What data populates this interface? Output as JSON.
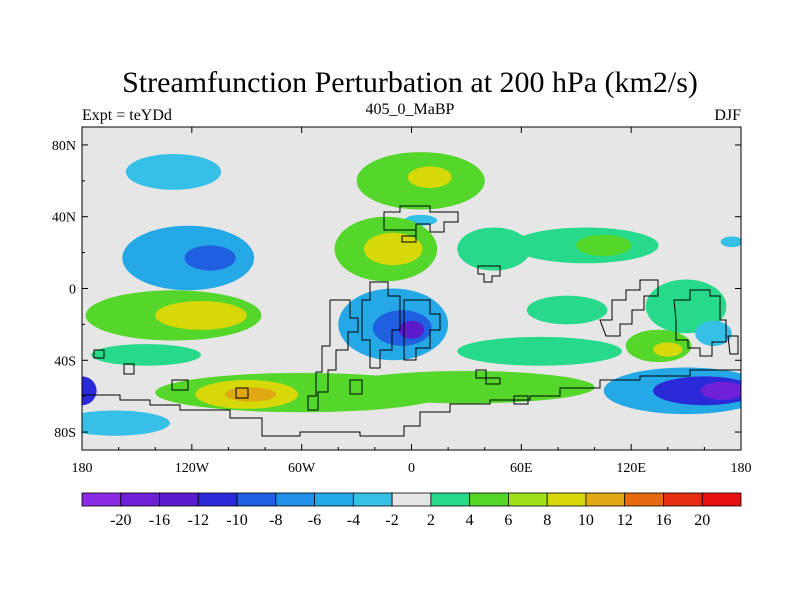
{
  "chart_data": {
    "type": "heatmap",
    "title": "Streamfunction Perturbation at 200 hPa (km2/s)",
    "subtitle_left": "Expt = teYDd",
    "subtitle_center": "405_0_MaBP",
    "subtitle_right": "DJF",
    "x_ticks": [
      {
        "value": -180,
        "label": "180"
      },
      {
        "value": -120,
        "label": "120W"
      },
      {
        "value": -60,
        "label": "60W"
      },
      {
        "value": 0,
        "label": "0"
      },
      {
        "value": 60,
        "label": "60E"
      },
      {
        "value": 120,
        "label": "120E"
      },
      {
        "value": 180,
        "label": "180"
      }
    ],
    "y_ticks": [
      {
        "value": 80,
        "label": "80N"
      },
      {
        "value": 40,
        "label": "40N"
      },
      {
        "value": 0,
        "label": "0"
      },
      {
        "value": -40,
        "label": "40S"
      },
      {
        "value": -80,
        "label": "80S"
      }
    ],
    "xlim": [
      -180,
      180
    ],
    "ylim": [
      -90,
      90
    ],
    "levels": [
      -20,
      -16,
      -12,
      -10,
      -8,
      -6,
      -4,
      -2,
      2,
      4,
      6,
      8,
      10,
      12,
      16,
      20
    ],
    "level_labels": [
      "-20",
      "-16",
      "-12",
      "-10",
      "-8",
      "-6",
      "-4",
      "-2",
      "2",
      "4",
      "6",
      "8",
      "10",
      "12",
      "16",
      "20"
    ],
    "colors": [
      "#8a2be2",
      "#6f1fd6",
      "#5a1ccc",
      "#2a2ad8",
      "#1f5fe0",
      "#1f8fe8",
      "#25a8e6",
      "#36c0e8",
      "#e6e6e6",
      "#27d98a",
      "#55d62a",
      "#9ee01a",
      "#d6d80a",
      "#e0a812",
      "#e86a10",
      "#e43010",
      "#e81010"
    ],
    "background_color": "#e6e6e6",
    "features": [
      {
        "lon": -130,
        "lat": 65,
        "rlon": 26,
        "rlat": 10,
        "value": -3
      },
      {
        "lon": 5,
        "lat": 60,
        "rlon": 35,
        "rlat": 16,
        "value": 4
      },
      {
        "lon": 10,
        "lat": 62,
        "rlon": 12,
        "rlat": 6,
        "value": 8
      },
      {
        "lon": 5,
        "lat": 38,
        "rlon": 9,
        "rlat": 3,
        "value": -2.5
      },
      {
        "lon": -122,
        "lat": 17,
        "rlon": 36,
        "rlat": 18,
        "value": -6
      },
      {
        "lon": -110,
        "lat": 17,
        "rlon": 14,
        "rlat": 7,
        "value": -10
      },
      {
        "lon": -14,
        "lat": 22,
        "rlon": 28,
        "rlat": 18,
        "value": 4
      },
      {
        "lon": -10,
        "lat": 22,
        "rlon": 16,
        "rlat": 9,
        "value": 8
      },
      {
        "lon": 45,
        "lat": 22,
        "rlon": 20,
        "rlat": 12,
        "value": 3
      },
      {
        "lon": 95,
        "lat": 24,
        "rlon": 40,
        "rlat": 10,
        "value": 3
      },
      {
        "lon": 105,
        "lat": 24,
        "rlon": 15,
        "rlat": 6,
        "value": 5
      },
      {
        "lon": 175,
        "lat": 26,
        "rlon": 6,
        "rlat": 3,
        "value": -3
      },
      {
        "lon": -130,
        "lat": -15,
        "rlon": 48,
        "rlat": 14,
        "value": 4
      },
      {
        "lon": -115,
        "lat": -15,
        "rlon": 25,
        "rlat": 8,
        "value": 8
      },
      {
        "lon": -10,
        "lat": -20,
        "rlon": 30,
        "rlat": 20,
        "value": -6
      },
      {
        "lon": -5,
        "lat": -22,
        "rlon": 16,
        "rlat": 10,
        "value": -10
      },
      {
        "lon": 0,
        "lat": -23,
        "rlon": 7,
        "rlat": 5,
        "value": -14
      },
      {
        "lon": 85,
        "lat": -12,
        "rlon": 22,
        "rlat": 8,
        "value": 3
      },
      {
        "lon": 150,
        "lat": -10,
        "rlon": 22,
        "rlat": 15,
        "value": 2.5
      },
      {
        "lon": 70,
        "lat": -35,
        "rlon": 45,
        "rlat": 8,
        "value": 3
      },
      {
        "lon": 135,
        "lat": -32,
        "rlon": 18,
        "rlat": 9,
        "value": 5
      },
      {
        "lon": 140,
        "lat": -34,
        "rlon": 8,
        "rlat": 4,
        "value": 9
      },
      {
        "lon": 165,
        "lat": -25,
        "rlon": 10,
        "rlat": 7,
        "value": -3
      },
      {
        "lon": -145,
        "lat": -37,
        "rlon": 30,
        "rlat": 6,
        "value": 3
      },
      {
        "lon": -60,
        "lat": -58,
        "rlon": 80,
        "rlat": 11,
        "value": 5
      },
      {
        "lon": -90,
        "lat": -59,
        "rlon": 28,
        "rlat": 8,
        "value": 9
      },
      {
        "lon": -88,
        "lat": -59,
        "rlon": 14,
        "rlat": 4,
        "value": 11
      },
      {
        "lon": 30,
        "lat": -55,
        "rlon": 70,
        "rlat": 9,
        "value": 4
      },
      {
        "lon": 150,
        "lat": -57,
        "rlon": 45,
        "rlat": 13,
        "value": -6
      },
      {
        "lon": 160,
        "lat": -57,
        "rlon": 28,
        "rlat": 8,
        "value": -12
      },
      {
        "lon": 170,
        "lat": -57,
        "rlon": 12,
        "rlat": 5,
        "value": -20
      },
      {
        "lon": -180,
        "lat": -57,
        "rlon": 8,
        "rlat": 8,
        "value": -12
      },
      {
        "lon": -162,
        "lat": -75,
        "rlon": 30,
        "rlat": 7,
        "value": -3
      }
    ]
  }
}
